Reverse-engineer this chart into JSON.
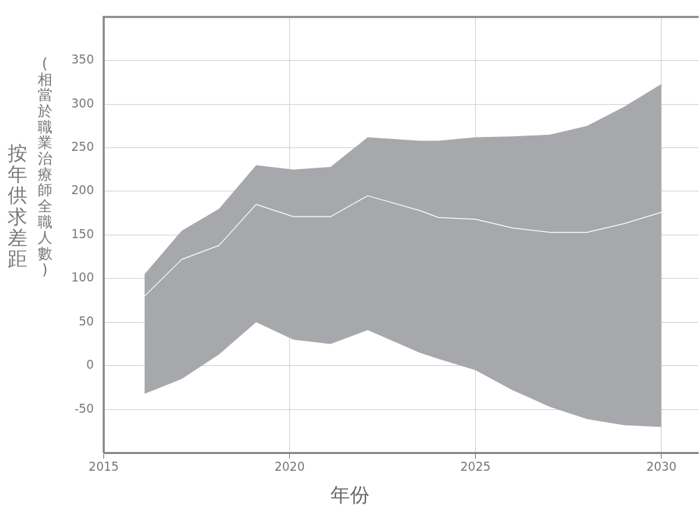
{
  "chart_data": {
    "type": "line",
    "xlabel": "年份",
    "ylabel": "按年供求差距",
    "annotations": [
      "(相當於職業治療師全職人數)"
    ],
    "xlim": [
      2015,
      2031
    ],
    "xticks": [
      2015,
      2020,
      2025,
      2030
    ],
    "ylim": [
      -100,
      400
    ],
    "yticks": [
      -50,
      0,
      50,
      100,
      150,
      200,
      250,
      300,
      350
    ],
    "grid": true,
    "legend": false,
    "marker": "none",
    "series": [
      {
        "color": "#ffffff",
        "x": [
          2016.1,
          2017.1,
          2018.1,
          2019.1,
          2020.1,
          2021.1,
          2022.1,
          2023.5,
          2024,
          2025,
          2026,
          2027,
          2028,
          2029,
          2030
        ],
        "values": [
          80,
          122,
          138,
          185,
          171,
          171,
          195,
          178,
          170,
          168,
          158,
          153,
          153,
          163,
          176
        ],
        "lower": [
          -32,
          -15,
          13,
          50,
          30,
          25,
          41,
          15,
          8,
          -5,
          -28,
          -47,
          -61,
          -68,
          -70
        ],
        "upper": [
          105,
          155,
          180,
          230,
          225,
          228,
          262,
          258,
          258,
          262,
          263,
          265,
          275,
          297,
          323
        ]
      }
    ]
  }
}
